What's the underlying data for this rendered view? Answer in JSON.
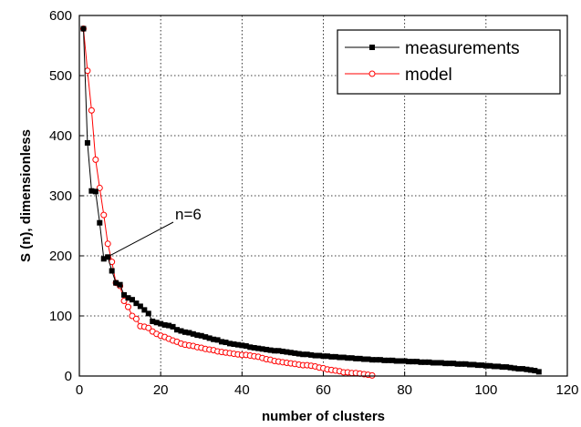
{
  "chart_data": {
    "type": "line",
    "title": "",
    "xlabel": "number of clusters",
    "ylabel": "S (n), dimensionless",
    "xlim": [
      0,
      120
    ],
    "ylim": [
      0,
      600
    ],
    "xticks": [
      0,
      20,
      40,
      60,
      80,
      100,
      120
    ],
    "yticks": [
      0,
      100,
      200,
      300,
      400,
      500,
      600
    ],
    "grid": true,
    "legend_position": "top-right",
    "series": [
      {
        "name": "measurements",
        "color": "#000000",
        "marker": "square-filled",
        "x": [
          1,
          2,
          3,
          4,
          5,
          6,
          7,
          8,
          9,
          10,
          11,
          12,
          13,
          14,
          15,
          16,
          17,
          18,
          19,
          20,
          21,
          22,
          23,
          24,
          25,
          26,
          27,
          28,
          29,
          30,
          31,
          32,
          33,
          34,
          35,
          36,
          37,
          38,
          39,
          40,
          41,
          42,
          43,
          44,
          45,
          46,
          47,
          48,
          49,
          50,
          51,
          52,
          53,
          54,
          55,
          56,
          57,
          58,
          59,
          60,
          61,
          62,
          63,
          64,
          65,
          66,
          67,
          68,
          69,
          70,
          71,
          72,
          73,
          74,
          75,
          76,
          77,
          78,
          79,
          80,
          81,
          82,
          83,
          84,
          85,
          86,
          87,
          88,
          89,
          90,
          91,
          92,
          93,
          94,
          95,
          96,
          97,
          98,
          99,
          100,
          101,
          102,
          103,
          104,
          105,
          106,
          107,
          108,
          109,
          110,
          111,
          112,
          113
        ],
        "values": [
          578,
          388,
          308,
          307,
          255,
          195,
          198,
          175,
          155,
          152,
          135,
          130,
          127,
          121,
          116,
          110,
          104,
          91,
          89,
          87,
          85,
          84,
          82,
          77,
          75,
          73,
          72,
          70,
          68,
          67,
          65,
          63,
          61,
          60,
          57,
          56,
          54,
          53,
          52,
          51,
          50,
          48,
          47,
          46,
          45,
          44,
          43,
          42,
          42,
          41,
          40,
          39,
          38,
          37,
          36,
          36,
          35,
          34,
          34,
          33,
          33,
          32,
          32,
          31,
          31,
          30,
          30,
          29,
          29,
          28,
          28,
          27,
          27,
          27,
          26,
          26,
          26,
          25,
          25,
          25,
          24,
          24,
          24,
          23,
          23,
          23,
          22,
          22,
          22,
          21,
          21,
          21,
          20,
          20,
          20,
          19,
          19,
          18,
          18,
          17,
          17,
          16,
          16,
          15,
          15,
          14,
          13,
          12,
          12,
          11,
          10,
          9,
          7
        ]
      },
      {
        "name": "model",
        "color": "#ff0000",
        "marker": "circle-open",
        "x": [
          1,
          2,
          3,
          4,
          5,
          6,
          7,
          8,
          9,
          10,
          11,
          12,
          13,
          14,
          15,
          16,
          17,
          18,
          19,
          20,
          21,
          22,
          23,
          24,
          25,
          26,
          27,
          28,
          29,
          30,
          31,
          32,
          33,
          34,
          35,
          36,
          37,
          38,
          39,
          40,
          41,
          42,
          43,
          44,
          45,
          46,
          47,
          48,
          49,
          50,
          51,
          52,
          53,
          54,
          55,
          56,
          57,
          58,
          59,
          60,
          61,
          62,
          63,
          64,
          65,
          66,
          67,
          68,
          69,
          70,
          71,
          72
        ],
        "values": [
          578,
          508,
          442,
          360,
          313,
          268,
          220,
          190,
          155,
          150,
          125,
          115,
          100,
          95,
          83,
          82,
          80,
          74,
          70,
          67,
          65,
          62,
          59,
          57,
          54,
          52,
          51,
          50,
          48,
          47,
          45,
          44,
          43,
          41,
          40,
          39,
          38,
          37,
          36,
          35,
          35,
          34,
          33,
          32,
          30,
          28,
          27,
          25,
          24,
          23,
          22,
          21,
          20,
          19,
          18,
          18,
          17,
          16,
          14,
          13,
          11,
          10,
          9,
          8,
          6,
          6,
          5,
          5,
          4,
          3,
          2,
          1
        ]
      }
    ],
    "annotations": [
      {
        "text": "n=6",
        "points_to": {
          "x": 6,
          "y": 195
        }
      }
    ]
  }
}
